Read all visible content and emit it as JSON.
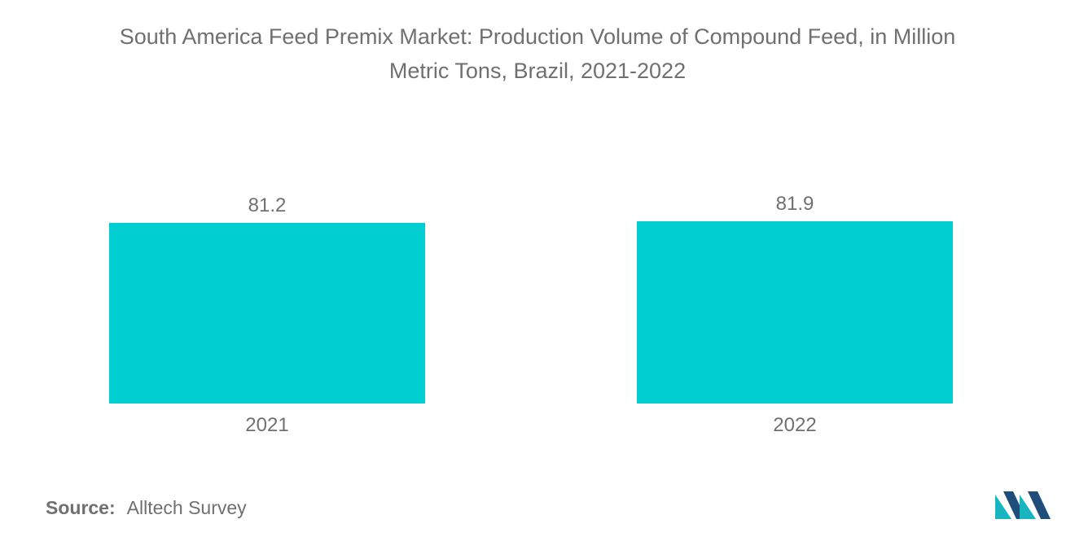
{
  "title_line1": "South America Feed Premix Market: Production Volume of Compound Feed, in Million",
  "title_line2": "Metric Tons, Brazil, 2021-2022",
  "source_label": "Source:",
  "source_value": "Alltech Survey",
  "colors": {
    "bar": "#00CED1",
    "text": "#707070",
    "logo_teal": "#18B4C0",
    "logo_navy": "#1E4E79"
  },
  "chart_data": {
    "type": "bar",
    "categories": [
      "2021",
      "2022"
    ],
    "values": [
      81.2,
      81.9
    ],
    "data_labels": [
      "81.2",
      "81.9"
    ],
    "ylim": [
      0,
      81.9
    ],
    "grid": false,
    "legend": "none"
  }
}
